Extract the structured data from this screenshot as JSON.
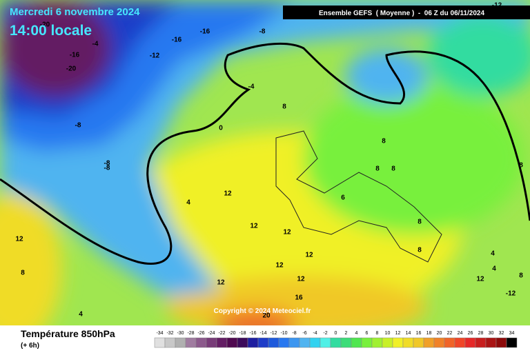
{
  "header": {
    "date": "Mercredi 6 novembre 2024",
    "time": "14:00 locale",
    "model": "Ensemble GEFS  ( Moyenne )  -  06 Z du 06/11/2024"
  },
  "copyright": "Copyright © 2024 Meteociel.fr",
  "footer": {
    "variable": "Température 850hPa",
    "lead": "(+ 6h)"
  },
  "scale": {
    "values": [
      -34,
      -32,
      -30,
      -28,
      -26,
      -24,
      -22,
      -20,
      -18,
      -16,
      -14,
      -12,
      -10,
      -8,
      -6,
      -4,
      -2,
      0,
      2,
      4,
      6,
      8,
      10,
      12,
      14,
      16,
      18,
      20,
      22,
      24,
      26,
      28,
      30,
      32,
      34
    ],
    "colors": [
      "#e0e0e0",
      "#c8c8c8",
      "#b0b0b0",
      "#a07ca0",
      "#8c5a8c",
      "#783c78",
      "#641e64",
      "#500a50",
      "#3c0a5a",
      "#1e1ea0",
      "#1e3cc8",
      "#1e5adc",
      "#2878f0",
      "#3c96f0",
      "#50b4f0",
      "#32d2f0",
      "#50f0e6",
      "#32dca0",
      "#3cdc78",
      "#50e650",
      "#78f03c",
      "#a0f032",
      "#c8f028",
      "#f0f028",
      "#f0dc28",
      "#f0c828",
      "#f0a028",
      "#f08228",
      "#f06428",
      "#f04628",
      "#e62828",
      "#c81e1e",
      "#aa1414",
      "#8c0a0a",
      "#000000"
    ]
  },
  "contour_labels": [
    -20,
    -16,
    -8,
    -4,
    -16,
    -12,
    -16,
    -20,
    -4,
    -8,
    0,
    -8,
    -8,
    8,
    8,
    8,
    8,
    8,
    4,
    12,
    12,
    12,
    12,
    8,
    12,
    12,
    12,
    12,
    16,
    4,
    20,
    4,
    4,
    12,
    8,
    -12,
    8,
    8,
    6,
    -12
  ]
}
